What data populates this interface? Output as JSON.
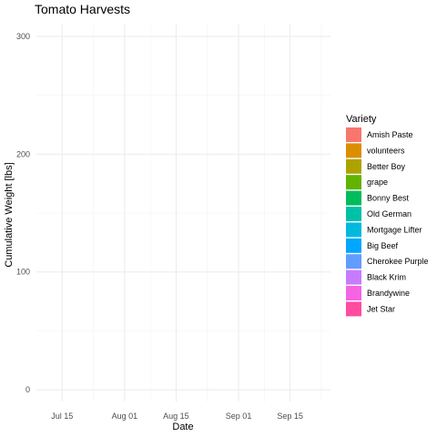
{
  "chart_data": {
    "type": "area",
    "title": "Tomato Harvests",
    "xlabel": "Date",
    "ylabel": "Cumulative Weight [lbs]",
    "x_ticks": [
      "Jul 15",
      "Aug 01",
      "Aug 15",
      "Sep 01",
      "Sep 15"
    ],
    "x_range": [
      "2020-07-08",
      "2020-09-26"
    ],
    "y_ticks": [
      0,
      100,
      200,
      300
    ],
    "ylim": [
      -10,
      310
    ],
    "grid": true,
    "legend_position": "right",
    "legend_title": "Variety",
    "series": [
      {
        "name": "Amish Paste",
        "color": "#F8766D",
        "values": []
      },
      {
        "name": "volunteers",
        "color": "#DB8E00",
        "values": []
      },
      {
        "name": "Better Boy",
        "color": "#AEA200",
        "values": []
      },
      {
        "name": "grape",
        "color": "#64B200",
        "values": []
      },
      {
        "name": "Bonny Best",
        "color": "#00BD5C",
        "values": []
      },
      {
        "name": "Old German",
        "color": "#00C1A7",
        "values": []
      },
      {
        "name": "Mortgage Lifter",
        "color": "#00BADE",
        "values": []
      },
      {
        "name": "Big Beef",
        "color": "#00A6FF",
        "values": []
      },
      {
        "name": "Cherokee Purple",
        "color": "#619CFF",
        "values": []
      },
      {
        "name": "Black Krim",
        "color": "#C77CFF",
        "values": []
      },
      {
        "name": "Brandywine",
        "color": "#F564E3",
        "values": []
      },
      {
        "name": "Jet Star",
        "color": "#FF4BA0",
        "values": []
      }
    ]
  }
}
